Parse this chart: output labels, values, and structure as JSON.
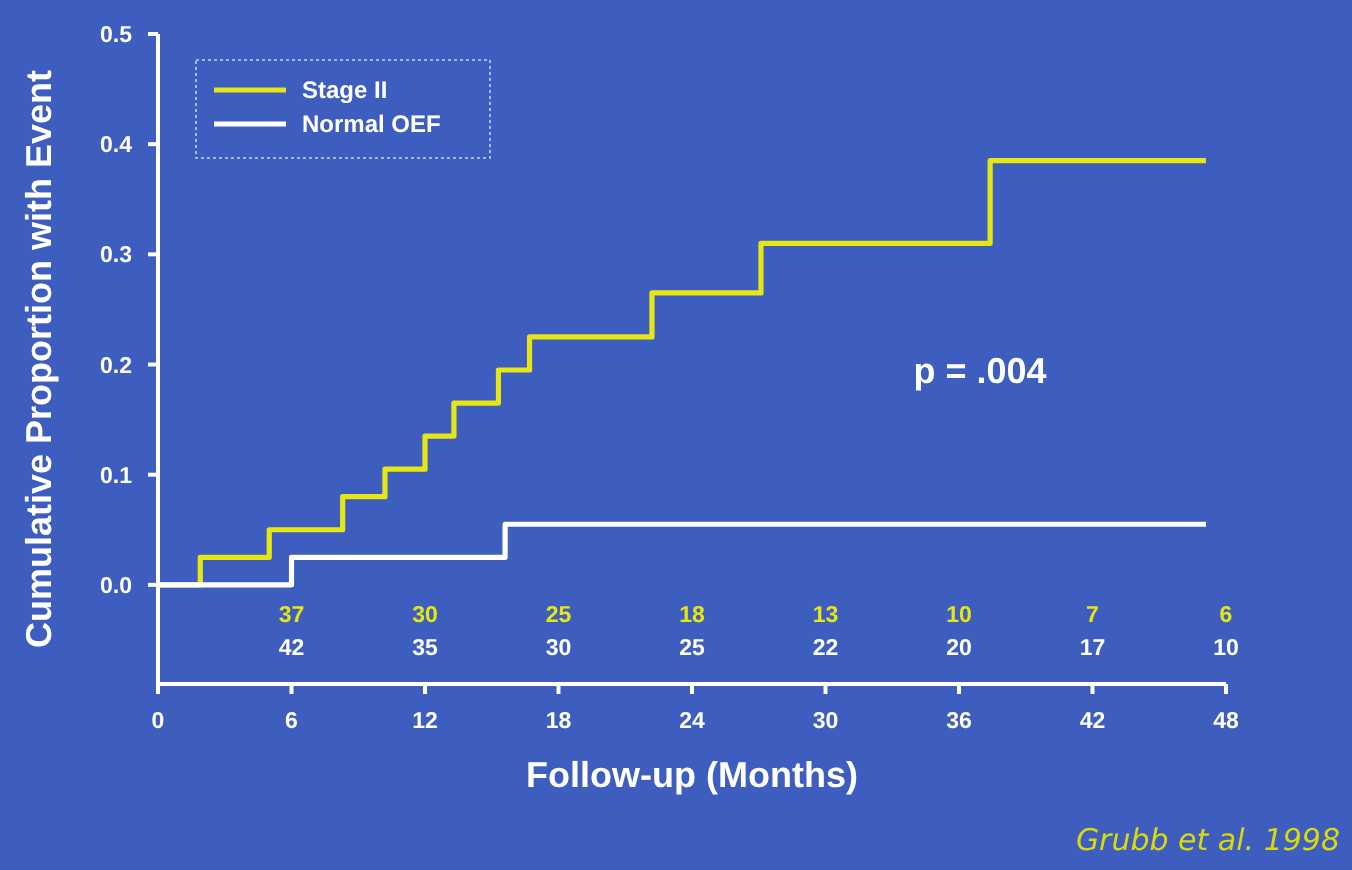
{
  "chart_data": {
    "type": "step",
    "xlabel": "Follow-up (Months)",
    "ylabel": "Cumulative Proportion with Event",
    "xlim": [
      0,
      48
    ],
    "xticks": [
      0,
      6,
      12,
      18,
      24,
      30,
      36,
      42,
      48
    ],
    "ylim": [
      -0.09,
      0.5
    ],
    "yticks": [
      {
        "value": 0,
        "label": "0.0"
      },
      0.1,
      0.2,
      0.3,
      0.4,
      0.5
    ],
    "legend": "top left",
    "series": [
      {
        "name": "Stage II",
        "color": "#e6e614",
        "x": [
          0,
          1.9,
          5,
          8.3,
          10.2,
          12,
          13.3,
          15.3,
          16.7,
          22.2,
          27.1,
          37.4,
          47.1
        ],
        "values": [
          0,
          0.025,
          0.05,
          0.08,
          0.105,
          0.135,
          0.165,
          0.195,
          0.225,
          0.265,
          0.31,
          0.385,
          0.385
        ]
      },
      {
        "name": "Normal OEF",
        "color": "#ffffff",
        "x": [
          0,
          6,
          15.6,
          47.1
        ],
        "values": [
          0,
          0.025,
          0.055,
          0.055
        ]
      }
    ],
    "annotations": [
      "p = .004",
      "37",
      "30",
      "25",
      "18",
      "13",
      "10",
      "7",
      "6",
      "42",
      "35",
      "30",
      "25",
      "22",
      "20",
      "17",
      "10",
      "Grubb et al. 1998"
    ]
  }
}
